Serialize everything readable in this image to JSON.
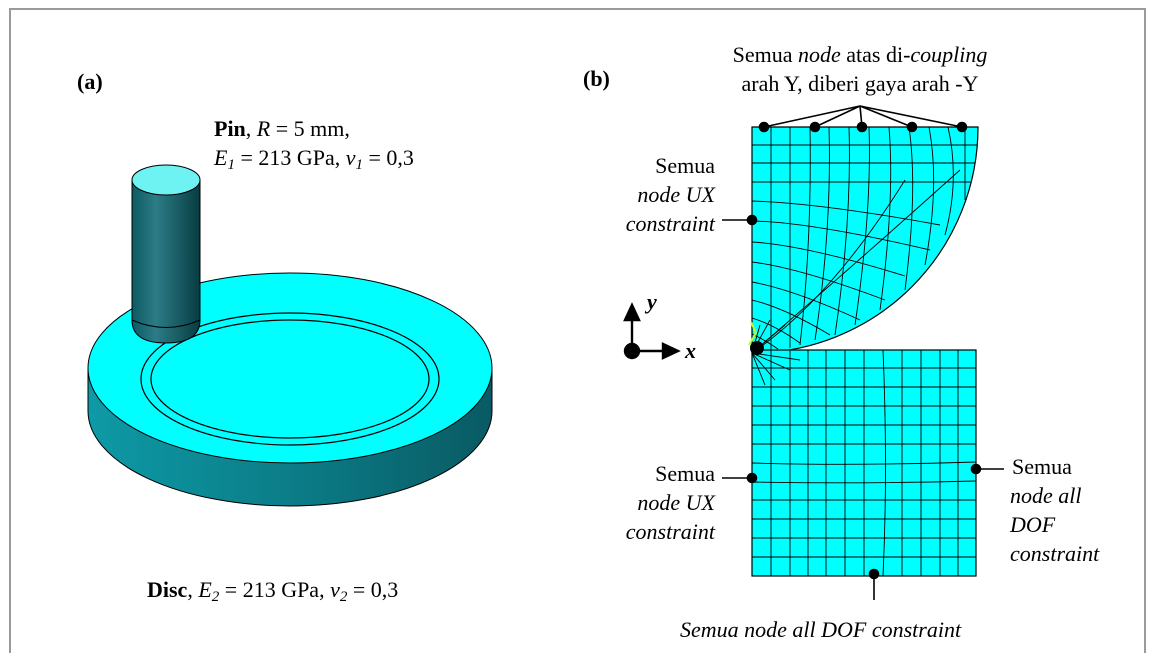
{
  "panel_a": {
    "label": "(a)",
    "pin": {
      "name": "Pin",
      "radius_text": ", R = 5 mm,",
      "modulus_text": "E1 = 213 GPa, v1 = 0,3",
      "sym_R": "R",
      "eq_R": " = 5 mm,",
      "sym_E": "E",
      "sub_E": "1",
      "eq_E": " = 213 GPa, ",
      "sym_v": "v",
      "sub_v": "1",
      "eq_v": " = 0,3"
    },
    "disc": {
      "name": "Disc",
      "sym_E": "E",
      "sub_E": "2",
      "eq_E": " = 213 GPa, ",
      "sym_v": "v",
      "sub_v": "2",
      "eq_v": " = 0,3"
    },
    "colors": {
      "cyan": "#00ffff",
      "pin_dark": "#0a4b52",
      "disc_side": "#0b7f8a"
    }
  },
  "panel_b": {
    "label": "(b)",
    "top_note_line1_a": "Semua ",
    "top_note_line1_b": "node",
    "top_note_line1_c": " atas di-",
    "top_note_line1_d": "coupling",
    "top_note_line2": "arah Y, diberi gaya arah -Y",
    "left_upper": {
      "line1": "Semua",
      "line2": "node UX",
      "line3": "constraint"
    },
    "left_lower": {
      "line1": "Semua",
      "line2": "node UX",
      "line3": "constraint"
    },
    "right": {
      "line1": "Semua",
      "line2": "node all",
      "line3": "DOF",
      "line4": "constraint"
    },
    "bottom": "Semua node all DOF constraint",
    "axis_y": "y",
    "axis_x": "x",
    "colors": {
      "mesh_fill": "#00ffff",
      "mesh_line": "#000000"
    }
  }
}
